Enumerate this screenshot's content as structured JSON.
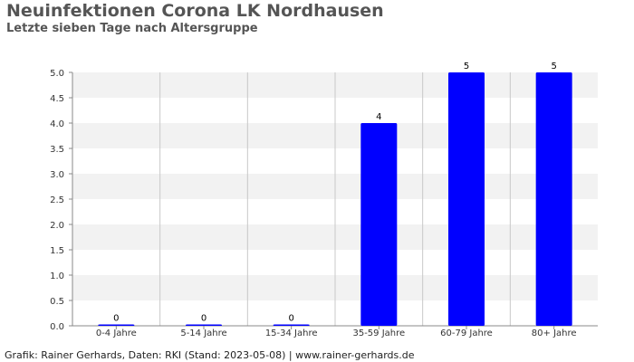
{
  "header": {
    "title": "Neuinfektionen Corona LK Nordhausen",
    "subtitle": "Letzte sieben Tage nach Altersgruppe"
  },
  "footer": {
    "credit": "Grafik: Rainer Gerhards, Daten: RKI (Stand: 2023-05-08) | www.rainer-gerhards.de"
  },
  "colors": {
    "bar": "#0000ff",
    "band": "#f2f2f2",
    "grid": "#c8c8c8",
    "axis": "#888888",
    "text": "#333333"
  },
  "chart_data": {
    "type": "bar",
    "title": "Neuinfektionen Corona LK Nordhausen",
    "subtitle": "Letzte sieben Tage nach Altersgruppe",
    "categories": [
      "0-4 Jahre",
      "5-14 Jahre",
      "15-34 Jahre",
      "35-59 Jahre",
      "60-79 Jahre",
      "80+ Jahre"
    ],
    "values": [
      0,
      0,
      0,
      4,
      5,
      5
    ],
    "data_labels": [
      "0",
      "0",
      "0",
      "4",
      "5",
      "5"
    ],
    "yticks": [
      "0.0",
      "0.5",
      "1.0",
      "1.5",
      "2.0",
      "2.5",
      "3.0",
      "3.5",
      "4.0",
      "4.5",
      "5.0"
    ],
    "ylim": [
      0,
      5
    ],
    "xlabel": "",
    "ylabel": "",
    "grid": true,
    "legend": "none"
  }
}
